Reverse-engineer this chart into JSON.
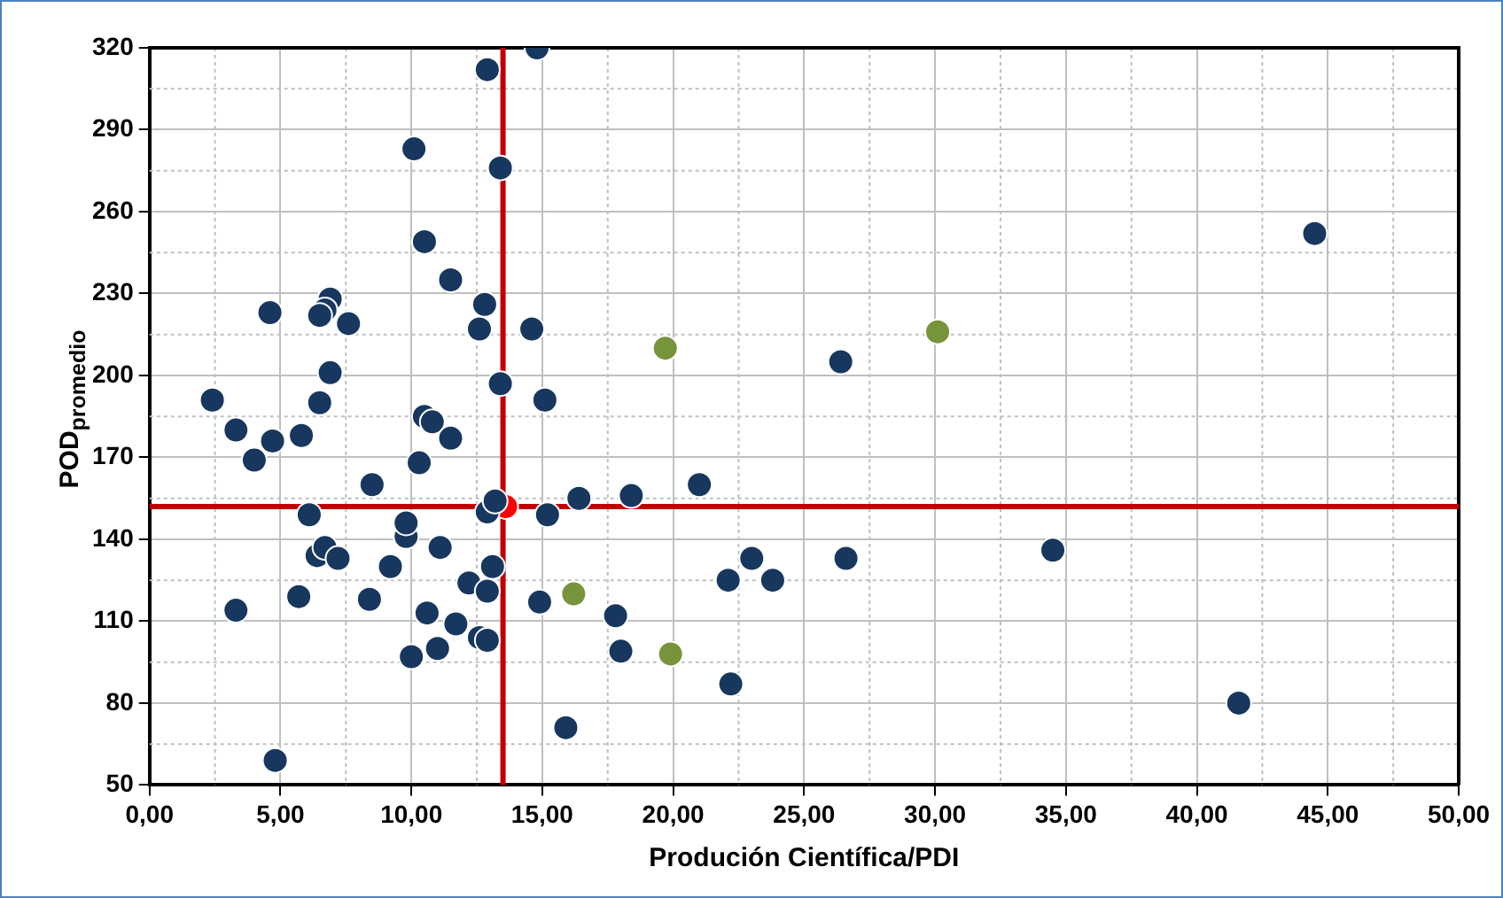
{
  "chart_data": {
    "type": "scatter",
    "xlabel": "Produción Científica/PDI",
    "ylabel": "POD$_{promedio}$",
    "xlim": [
      0,
      50
    ],
    "ylim": [
      50,
      320
    ],
    "xticks": [
      {
        "value": 0,
        "label": "0,00"
      },
      {
        "value": 5,
        "label": "5,00"
      },
      {
        "value": 10,
        "label": "10,00"
      },
      {
        "value": 15,
        "label": "15,00"
      },
      {
        "value": 20,
        "label": "20,00"
      },
      {
        "value": 25,
        "label": "25,00"
      },
      {
        "value": 30,
        "label": "30,00"
      },
      {
        "value": 35,
        "label": "35,00"
      },
      {
        "value": 40,
        "label": "40,00"
      },
      {
        "value": 45,
        "label": "45,00"
      },
      {
        "value": 50,
        "label": "50,00"
      }
    ],
    "yticks": [
      50,
      80,
      110,
      140,
      170,
      200,
      230,
      260,
      290,
      320
    ],
    "grid": true,
    "legend": false,
    "marker": "circle",
    "ref_lines": [
      {
        "axis": "x",
        "value": 13.5,
        "color": "#c00000"
      },
      {
        "axis": "y",
        "value": 152,
        "color": "#c00000"
      }
    ],
    "series": [
      {
        "color": "#17375e",
        "x": [
          2.4,
          3.3,
          4.0,
          4.7,
          5.8,
          4.6,
          6.9,
          6.7,
          6.5,
          7.6,
          6.9,
          6.5,
          6.1,
          6.4,
          6.7,
          7.2,
          5.7,
          3.3,
          8.5,
          8.4,
          9.2,
          9.8,
          9.8,
          10.0,
          10.1,
          10.5,
          10.5,
          10.8,
          10.3,
          11.5,
          11.5,
          11.1,
          10.6,
          11.0,
          11.7,
          12.2,
          12.6,
          12.9,
          12.9,
          13.1,
          12.9,
          13.2,
          12.6,
          12.8,
          12.9,
          13.4,
          13.4,
          14.8,
          14.6,
          15.1,
          15.2,
          16.4,
          14.9,
          15.9,
          18.4,
          21.0,
          17.8,
          18.0,
          22.2,
          22.1,
          23.0,
          23.8,
          26.4,
          26.6,
          34.5,
          41.6,
          44.5,
          4.8
        ],
        "values": [
          191,
          180,
          169,
          176,
          178,
          223,
          228,
          224,
          222,
          219,
          201,
          190,
          149,
          134,
          137,
          133,
          119,
          114,
          160,
          118,
          130,
          141,
          146,
          97,
          283,
          249,
          185,
          183,
          168,
          235,
          177,
          137,
          113,
          100,
          109,
          124,
          104,
          103,
          121,
          130,
          150,
          154,
          217,
          226,
          312,
          276,
          197,
          320,
          217,
          191,
          149,
          155,
          117,
          71,
          156,
          160,
          112,
          99,
          87,
          125,
          133,
          125,
          205,
          133,
          136,
          80,
          252,
          59
        ]
      },
      {
        "color": "#77933c",
        "x": [
          19.7,
          30.1,
          16.2,
          19.9
        ],
        "values": [
          210,
          216,
          120,
          98
        ]
      },
      {
        "color": "#ff0000",
        "x": [
          13.6
        ],
        "values": [
          152
        ]
      }
    ]
  }
}
